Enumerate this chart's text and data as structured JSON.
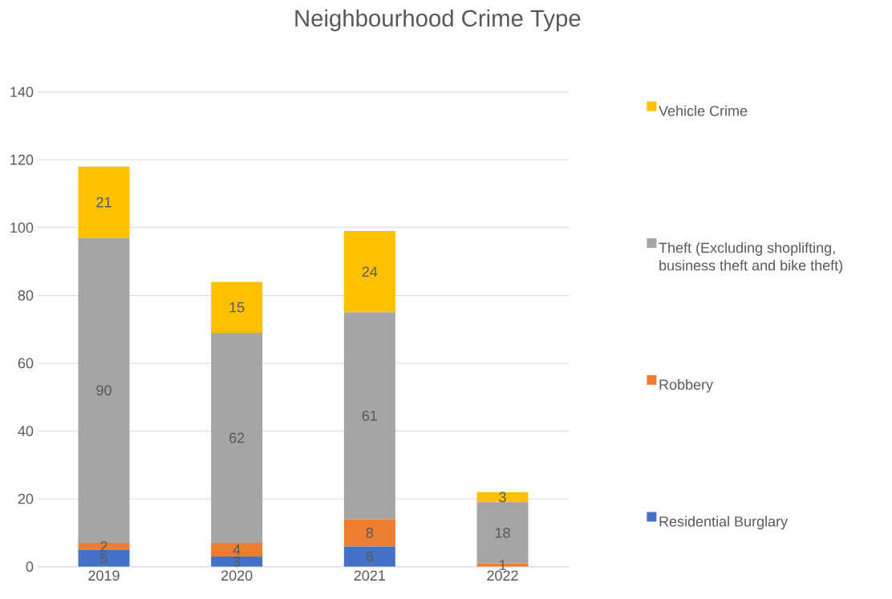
{
  "chart_data": {
    "type": "bar",
    "title": "Neighbourhood Crime Type",
    "stacked": true,
    "categories": [
      "2019",
      "2020",
      "2021",
      "2022"
    ],
    "series": [
      {
        "name": "Residential Burglary",
        "color": "#4472c4",
        "values": [
          5,
          3,
          6,
          0
        ],
        "value_labels": [
          "5",
          "3",
          "6",
          null
        ]
      },
      {
        "name": "Robbery",
        "color": "#ed7d31",
        "values": [
          2,
          4,
          8,
          1
        ],
        "value_labels": [
          "2",
          "4",
          "8",
          "1"
        ]
      },
      {
        "name": "Theft (Excluding shoplifting, business theft and bike theft)",
        "color": "#a5a5a5",
        "values": [
          90,
          62,
          61,
          18
        ],
        "value_labels": [
          "90",
          "62",
          "61",
          "18"
        ]
      },
      {
        "name": "Vehicle Crime",
        "color": "#ffc000",
        "values": [
          21,
          15,
          24,
          3
        ],
        "value_labels": [
          "21",
          "15",
          "24",
          "3"
        ]
      }
    ],
    "ylim": [
      0,
      140
    ],
    "yticks": [
      0,
      20,
      40,
      60,
      80,
      100,
      120,
      140
    ],
    "grid": "y",
    "legend": "right"
  }
}
